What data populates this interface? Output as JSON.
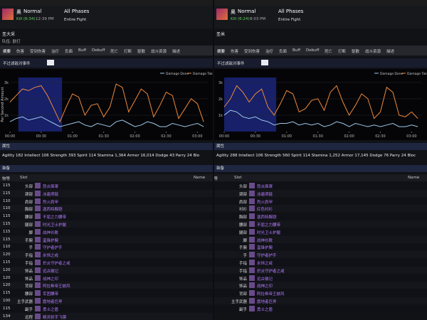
{
  "panels": [
    {
      "boss": "奥",
      "difficulty": "Normal",
      "kill": "Kill (6:34)",
      "time": "12:39 PM",
      "phases": "All Phases",
      "fight": "Entire Fight",
      "player": "圣大采",
      "guild": "队伍: 欧打",
      "tabs": [
        "摘要",
        "伤害",
        "受到伤害",
        "治疗",
        "负面",
        "Buff",
        "Debuff",
        "死亡",
        "打断",
        "驱散",
        "战斗资源",
        "描述"
      ],
      "filter": "不过滤敌对事件",
      "chart": {
        "type": "line",
        "ylabel": "Per Second Amount",
        "x": [
          0,
          6,
          12,
          18,
          24,
          30,
          36,
          42,
          48,
          54,
          60,
          66,
          72,
          78,
          84,
          90,
          96,
          102,
          108,
          114,
          120,
          126,
          132,
          138,
          144,
          150,
          156,
          162,
          168,
          174,
          180,
          186
        ],
        "series": [
          {
            "name": "Damage Done",
            "color": "#9fc7e8",
            "values": [
              600,
              800,
              900,
              700,
              800,
              900,
              700,
              500,
              300,
              400,
              500,
              600,
              400,
              300,
              500,
              400,
              300,
              600,
              700,
              500,
              300,
              400,
              600,
              500,
              300,
              300,
              500,
              400,
              300,
              400,
              500,
              300
            ]
          },
          {
            "name": "Damage Taken",
            "color": "#f08a3c",
            "values": [
              1800,
              2200,
              2600,
              2500,
              2700,
              2800,
              2200,
              1400,
              600,
              1500,
              2300,
              2100,
              1000,
              1600,
              1700,
              900,
              1500,
              2900,
              2700,
              1200,
              1900,
              2600,
              2300,
              900,
              1600,
              2400,
              2200,
              800,
              1400,
              2000,
              1700,
              600
            ]
          }
        ],
        "xlim": [
          0,
          190
        ],
        "ylim": [
          0,
          3300
        ],
        "xticks": [
          {
            "value": 0,
            "label": "00:00"
          },
          {
            "value": 30,
            "label": "00:30"
          },
          {
            "value": 60,
            "label": "01:00"
          },
          {
            "value": 90,
            "label": "01:30"
          },
          {
            "value": 120,
            "label": "02:00"
          },
          {
            "value": 150,
            "label": "02:30"
          },
          {
            "value": 180,
            "label": "03:00"
          }
        ],
        "yticks": [
          {
            "value": 1000,
            "label": "1k"
          },
          {
            "value": 2000,
            "label": "2k"
          },
          {
            "value": 3000,
            "label": "3k"
          }
        ],
        "highlight": [
          8,
          50
        ]
      },
      "stats_title": "属性",
      "stats": "Agility 182   Intellect 106   Strength 393   Spirit 114   Stamina 1,364   Armor 16,014   Dodge 43   Parry 24   Blo",
      "gear_title": "装备",
      "gear_headers": [
        "物等",
        "Slot",
        "Name"
      ],
      "gear": [
        {
          "ilvl": "115",
          "slot": "头部",
          "item": "怒炎面罩"
        },
        {
          "ilvl": "115",
          "slot": "颈部",
          "item": "冰霜项链"
        },
        {
          "ilvl": "110",
          "slot": "肩部",
          "item": "烈火肩甲"
        },
        {
          "ilvl": "110",
          "slot": "胸部",
          "item": "迦西特胸铠"
        },
        {
          "ilvl": "115",
          "slot": "腰部",
          "item": "不屈之力腰带"
        },
        {
          "ilvl": "115",
          "slot": "腿部",
          "item": "时光卫士护腿"
        },
        {
          "ilvl": "115",
          "slot": "脚",
          "item": "战神长靴"
        },
        {
          "ilvl": "115",
          "slot": "手腕",
          "item": "蛮锋护腕"
        },
        {
          "ilvl": "110",
          "slot": "手",
          "item": "守护者护手"
        },
        {
          "ilvl": "120",
          "slot": "手指",
          "item": "永恒之戒"
        },
        {
          "ilvl": "115",
          "slot": "手指",
          "item": "炽炎守护者之戒"
        },
        {
          "ilvl": "120",
          "slot": "饰品",
          "item": "远古徽记"
        },
        {
          "ilvl": "120",
          "slot": "饰品",
          "item": "战神之印"
        },
        {
          "ilvl": "120",
          "slot": "背部",
          "item": "阿拉希帝王披风"
        },
        {
          "ilvl": "115",
          "slot": "腰部",
          "item": "军团腰带"
        },
        {
          "ilvl": "100",
          "slot": "主手武器",
          "item": "震地者巨斧"
        },
        {
          "ilvl": "115",
          "slot": "副手",
          "item": "勇士之盾"
        },
        {
          "ilvl": "134",
          "slot": "远程",
          "item": "精灵射手飞镖"
        }
      ]
    },
    {
      "boss": "奥",
      "difficulty": "Normal",
      "kill": "Kill (6:24)",
      "time": "8:03 PM",
      "phases": "All Phases",
      "fight": "Entire Fight",
      "player": "圣米",
      "tabs": [
        "摘要",
        "伤害",
        "受到伤害",
        "治疗",
        "负面",
        "Buff",
        "Debuff",
        "死亡",
        "打断",
        "驱散",
        "战斗资源",
        "描述"
      ],
      "filter": "不过滤敌对事件",
      "chart": {
        "type": "line",
        "x": [
          0,
          6,
          12,
          18,
          24,
          30,
          36,
          42,
          48,
          54,
          60,
          66,
          72,
          78,
          84,
          90,
          96,
          102,
          108,
          114,
          120,
          126,
          132,
          138,
          144,
          150,
          156,
          162,
          168,
          174,
          180,
          186
        ],
        "series": [
          {
            "name": "Damage Done",
            "color": "#9fc7e8",
            "values": [
              1000,
              1300,
              1200,
              900,
              800,
              900,
              700,
              600,
              400,
              500,
              500,
              600,
              400,
              500,
              400,
              500,
              300,
              400,
              600,
              500,
              300,
              500,
              400,
              300,
              400,
              300,
              400,
              500,
              300,
              300,
              400,
              300
            ]
          },
          {
            "name": "Damage Taken",
            "color": "#f08a3c",
            "values": [
              1500,
              2000,
              2800,
              2400,
              1800,
              2300,
              2600,
              1500,
              1000,
              1700,
              2500,
              2300,
              1200,
              1400,
              1900,
              2000,
              1300,
              2400,
              2800,
              1800,
              1000,
              1600,
              2300,
              2000,
              800,
              1200,
              2700,
              2400,
              1000,
              900,
              1200,
              800
            ]
          }
        ],
        "xlim": [
          0,
          190
        ],
        "ylim": [
          0,
          3300
        ],
        "xticks": [
          {
            "value": 0,
            "label": "00:00"
          },
          {
            "value": 30,
            "label": "00:30"
          },
          {
            "value": 60,
            "label": "01:00"
          },
          {
            "value": 90,
            "label": "01:30"
          },
          {
            "value": 120,
            "label": "02:00"
          },
          {
            "value": 150,
            "label": "02:30"
          },
          {
            "value": 180,
            "label": "03:00"
          }
        ],
        "yticks": [
          {
            "value": 1000,
            "label": "1k"
          },
          {
            "value": 2000,
            "label": "2k"
          },
          {
            "value": 3000,
            "label": "3k"
          }
        ],
        "highlight": [
          0,
          50
        ]
      },
      "stats_title": "属性",
      "stats": "Agility 288   Intellect 106   Strength 560   Spirit 114   Stamina 1,252   Armor 17,145   Dodge 76   Parry 24   Bloc",
      "gear_title": "装备",
      "gear_headers": [
        "物等",
        "Slot",
        "Name"
      ],
      "gear": [
        {
          "slot": "头部",
          "item": "怒炎面罩"
        },
        {
          "slot": "颈部",
          "item": "冰霜项链"
        },
        {
          "slot": "肩部",
          "item": "烈火肩甲"
        },
        {
          "slot": "衬衫",
          "item": "红色衬衫"
        },
        {
          "slot": "胸部",
          "item": "迦西特胸铠"
        },
        {
          "slot": "腰部",
          "item": "不屈之力腰带"
        },
        {
          "slot": "腿部",
          "item": "时光卫士护腿"
        },
        {
          "slot": "脚",
          "item": "战神长靴"
        },
        {
          "slot": "手腕",
          "item": "蛮锋护腕"
        },
        {
          "slot": "手",
          "item": "守护者护手"
        },
        {
          "slot": "手指",
          "item": "永恒之戒"
        },
        {
          "slot": "手指",
          "item": "炽炎守护者之戒"
        },
        {
          "slot": "饰品",
          "item": "远古徽记"
        },
        {
          "slot": "饰品",
          "item": "战神之印"
        },
        {
          "slot": "背部",
          "item": "阿拉希帝王披风"
        },
        {
          "slot": "主手武器",
          "item": "震地者巨斧"
        },
        {
          "slot": "副手",
          "item": "勇士之盾"
        }
      ]
    }
  ]
}
